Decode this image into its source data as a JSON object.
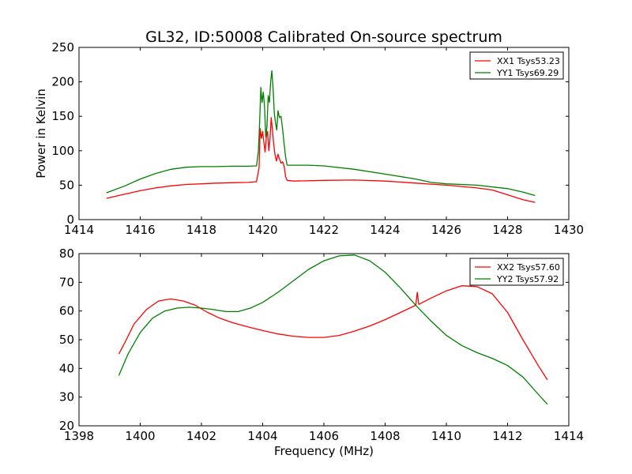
{
  "title": "GL32, ID:50008 Calibrated On-source spectrum",
  "colors": {
    "XX": "#ff0000",
    "YY": "#008000"
  },
  "chart_data": [
    {
      "type": "line",
      "ylabel": "Power in Kelvin",
      "xlabel": "",
      "xlim": [
        1414,
        1430
      ],
      "ylim": [
        0,
        250
      ],
      "xticks": [
        1414,
        1416,
        1418,
        1420,
        1422,
        1424,
        1426,
        1428,
        1430
      ],
      "yticks": [
        0,
        50,
        100,
        150,
        200,
        250
      ],
      "legend": "top-right",
      "grid": false,
      "series": [
        {
          "name": "XX1 Tsys53.23",
          "color": "#ff0000",
          "points": [
            [
              1414.9,
              31
            ],
            [
              1415.5,
              37
            ],
            [
              1416,
              42
            ],
            [
              1416.5,
              46
            ],
            [
              1417,
              49
            ],
            [
              1417.5,
              51
            ],
            [
              1418,
              52
            ],
            [
              1418.5,
              53
            ],
            [
              1419,
              53.5
            ],
            [
              1419.5,
              54
            ],
            [
              1419.8,
              55
            ],
            [
              1419.88,
              75
            ],
            [
              1419.92,
              132
            ],
            [
              1419.96,
              118
            ],
            [
              1420,
              128
            ],
            [
              1420.04,
              112
            ],
            [
              1420.08,
              98
            ],
            [
              1420.12,
              120
            ],
            [
              1420.16,
              128
            ],
            [
              1420.2,
              100
            ],
            [
              1420.24,
              118
            ],
            [
              1420.28,
              148
            ],
            [
              1420.32,
              130
            ],
            [
              1420.36,
              110
            ],
            [
              1420.4,
              95
            ],
            [
              1420.45,
              85
            ],
            [
              1420.5,
              95
            ],
            [
              1420.55,
              88
            ],
            [
              1420.6,
              82
            ],
            [
              1420.65,
              84
            ],
            [
              1420.7,
              78
            ],
            [
              1420.75,
              62
            ],
            [
              1420.8,
              57
            ],
            [
              1421,
              56
            ],
            [
              1422,
              57
            ],
            [
              1423,
              57.5
            ],
            [
              1424,
              56
            ],
            [
              1425,
              53
            ],
            [
              1426,
              50
            ],
            [
              1427,
              46
            ],
            [
              1427.5,
              43
            ],
            [
              1428,
              36
            ],
            [
              1428.5,
              29
            ],
            [
              1428.9,
              25
            ]
          ]
        },
        {
          "name": "YY1 Tsys69.29",
          "color": "#008000",
          "points": [
            [
              1414.9,
              39
            ],
            [
              1415.5,
              49
            ],
            [
              1416,
              59
            ],
            [
              1416.5,
              67
            ],
            [
              1417,
              73
            ],
            [
              1417.5,
              76
            ],
            [
              1418,
              77
            ],
            [
              1418.5,
              77
            ],
            [
              1419,
              77.5
            ],
            [
              1419.5,
              77.5
            ],
            [
              1419.8,
              78
            ],
            [
              1419.86,
              100
            ],
            [
              1419.9,
              140
            ],
            [
              1419.94,
              192
            ],
            [
              1419.98,
              170
            ],
            [
              1420.02,
              185
            ],
            [
              1420.06,
              165
            ],
            [
              1420.1,
              120
            ],
            [
              1420.14,
              135
            ],
            [
              1420.18,
              180
            ],
            [
              1420.22,
              170
            ],
            [
              1420.26,
              200
            ],
            [
              1420.3,
              216
            ],
            [
              1420.34,
              190
            ],
            [
              1420.38,
              155
            ],
            [
              1420.42,
              140
            ],
            [
              1420.46,
              130
            ],
            [
              1420.5,
              158
            ],
            [
              1420.55,
              148
            ],
            [
              1420.6,
              150
            ],
            [
              1420.65,
              132
            ],
            [
              1420.7,
              110
            ],
            [
              1420.75,
              90
            ],
            [
              1420.8,
              79
            ],
            [
              1421,
              79
            ],
            [
              1421.5,
              79
            ],
            [
              1422,
              78
            ],
            [
              1423,
              73
            ],
            [
              1424,
              66
            ],
            [
              1425,
              59
            ],
            [
              1425.5,
              54
            ],
            [
              1426,
              52
            ],
            [
              1427,
              50
            ],
            [
              1428,
              45
            ],
            [
              1428.5,
              40
            ],
            [
              1428.9,
              35
            ]
          ]
        }
      ]
    },
    {
      "type": "line",
      "ylabel": "",
      "xlabel": "Frequency (MHz)",
      "xlim": [
        1398,
        1414
      ],
      "ylim": [
        20,
        80
      ],
      "xticks": [
        1398,
        1400,
        1402,
        1404,
        1406,
        1408,
        1410,
        1412,
        1414
      ],
      "yticks": [
        20,
        30,
        40,
        50,
        60,
        70,
        80
      ],
      "legend": "top-right",
      "grid": false,
      "series": [
        {
          "name": "XX2 Tsys57.60",
          "color": "#ff0000",
          "points": [
            [
              1399.3,
              45
            ],
            [
              1399.5,
              49
            ],
            [
              1399.8,
              55.5
            ],
            [
              1400.2,
              60.5
            ],
            [
              1400.6,
              63.5
            ],
            [
              1401,
              64.2
            ],
            [
              1401.4,
              63.5
            ],
            [
              1401.8,
              62
            ],
            [
              1402.2,
              59.5
            ],
            [
              1402.6,
              57.5
            ],
            [
              1403,
              56
            ],
            [
              1403.5,
              54.5
            ],
            [
              1404,
              53.2
            ],
            [
              1404.5,
              52
            ],
            [
              1405,
              51.2
            ],
            [
              1405.5,
              50.8
            ],
            [
              1406,
              50.8
            ],
            [
              1406.5,
              51.5
            ],
            [
              1407,
              53
            ],
            [
              1407.5,
              54.8
            ],
            [
              1408,
              57
            ],
            [
              1408.5,
              59.5
            ],
            [
              1409,
              62
            ],
            [
              1409.05,
              66.5
            ],
            [
              1409.1,
              62.3
            ],
            [
              1409.5,
              64.5
            ],
            [
              1410,
              67
            ],
            [
              1410.5,
              68.8
            ],
            [
              1411,
              68.5
            ],
            [
              1411.5,
              66
            ],
            [
              1412,
              59.5
            ],
            [
              1412.5,
              50
            ],
            [
              1413,
              41
            ],
            [
              1413.3,
              36
            ]
          ]
        },
        {
          "name": "YY2 Tsys57.92",
          "color": "#008000",
          "points": [
            [
              1399.3,
              37.5
            ],
            [
              1399.6,
              45
            ],
            [
              1400,
              52.5
            ],
            [
              1400.4,
              57.5
            ],
            [
              1400.8,
              60
            ],
            [
              1401.2,
              61
            ],
            [
              1401.6,
              61.3
            ],
            [
              1402,
              61
            ],
            [
              1402.4,
              60.5
            ],
            [
              1402.8,
              59.8
            ],
            [
              1403.2,
              59.8
            ],
            [
              1403.6,
              61
            ],
            [
              1404,
              63
            ],
            [
              1404.5,
              66.5
            ],
            [
              1405,
              70.5
            ],
            [
              1405.5,
              74.5
            ],
            [
              1406,
              77.5
            ],
            [
              1406.5,
              79.2
            ],
            [
              1407,
              79.5
            ],
            [
              1407.5,
              77.5
            ],
            [
              1408,
              73.5
            ],
            [
              1408.5,
              68
            ],
            [
              1409,
              62
            ],
            [
              1409.5,
              56.5
            ],
            [
              1410,
              51.5
            ],
            [
              1410.5,
              48
            ],
            [
              1411,
              45.5
            ],
            [
              1411.5,
              43.5
            ],
            [
              1412,
              41
            ],
            [
              1412.5,
              37
            ],
            [
              1413,
              31
            ],
            [
              1413.3,
              27.5
            ]
          ]
        }
      ]
    }
  ]
}
